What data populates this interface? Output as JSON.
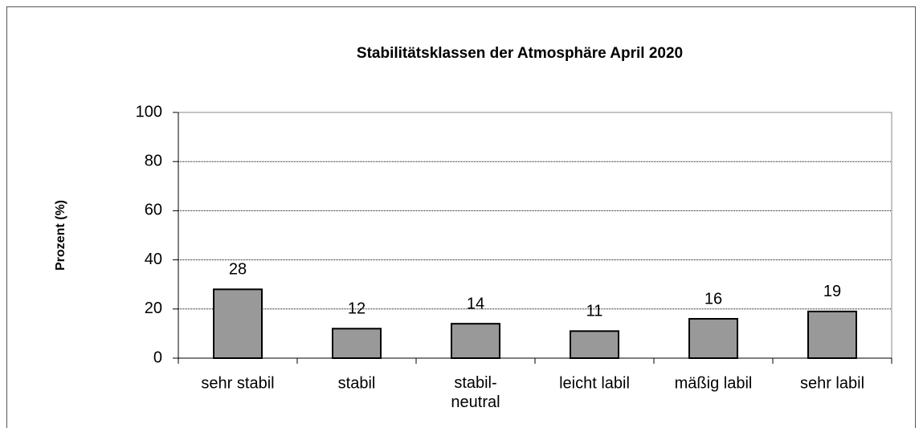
{
  "chart_data": {
    "type": "bar",
    "title": "Stabilitätsklassen der Atmosphäre April 2020",
    "y_label": "Prozent (%)",
    "categories": [
      "sehr stabil",
      "stabil",
      "stabil-\nneutral",
      "leicht labil",
      "mäßig labil",
      "sehr labil"
    ],
    "values": [
      28,
      12,
      14,
      11,
      16,
      19
    ],
    "color": "#999999",
    "ylim": [
      0,
      100
    ],
    "yticks": [
      0,
      20,
      40,
      60,
      80,
      100
    ],
    "grid": true
  }
}
